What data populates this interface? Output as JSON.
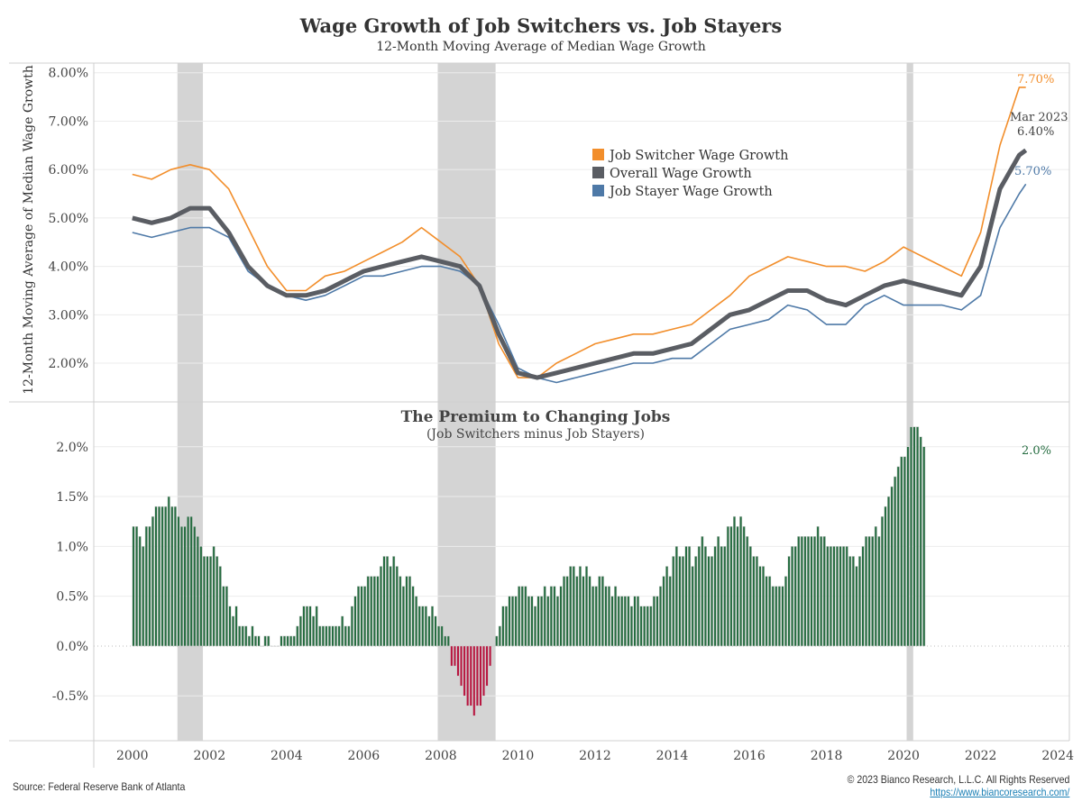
{
  "header": {
    "title": "Wage Growth of Job Switchers vs. Job Stayers",
    "subtitle": "12-Month Moving Average of Median Wage Growth"
  },
  "footer": {
    "source": "Source: Federal Reserve Bank of Atlanta",
    "copyright": "© 2023 Bianco Research, L.L.C. All Rights Reserved",
    "url": "https://www.biancoresearch.com/"
  },
  "colors": {
    "switcher": "#f28e2b",
    "overall": "#5a5d63",
    "stayer": "#4e79a7",
    "positive_bar": "#256c40",
    "negative_bar": "#b8153f",
    "recession": "#d4d4d4"
  },
  "chart_data": [
    {
      "type": "line",
      "title": "Wage Growth of Job Switchers vs. Job Stayers",
      "subtitle": "12-Month Moving Average of Median Wage Growth",
      "ylabel": "12-Month Moving Average of Median Wage Growth",
      "xlabel": "",
      "ylim": [
        1.2,
        8.2
      ],
      "xlim": [
        1999.0,
        2024.3
      ],
      "yticks": [
        "2.00%",
        "3.00%",
        "4.00%",
        "5.00%",
        "6.00%",
        "7.00%",
        "8.00%"
      ],
      "ytick_values": [
        2,
        3,
        4,
        5,
        6,
        7,
        8
      ],
      "grid": true,
      "legend_position": "top-center",
      "recessions": [
        [
          2001.17,
          2001.83
        ],
        [
          2007.92,
          2009.42
        ],
        [
          2020.08,
          2020.25
        ]
      ],
      "x": [
        2000.0,
        2000.5,
        2001.0,
        2001.5,
        2002.0,
        2002.5,
        2003.0,
        2003.5,
        2004.0,
        2004.5,
        2005.0,
        2005.5,
        2006.0,
        2006.5,
        2007.0,
        2007.5,
        2008.0,
        2008.5,
        2009.0,
        2009.5,
        2010.0,
        2010.5,
        2011.0,
        2011.5,
        2012.0,
        2012.5,
        2013.0,
        2013.5,
        2014.0,
        2014.5,
        2015.0,
        2015.5,
        2016.0,
        2016.5,
        2017.0,
        2017.5,
        2018.0,
        2018.5,
        2019.0,
        2019.5,
        2020.0,
        2020.5,
        2021.0,
        2021.5,
        2022.0,
        2022.5,
        2023.0,
        2023.17
      ],
      "series": [
        {
          "name": "Job Switcher Wage Growth",
          "end_label": "7.70%",
          "values": [
            5.9,
            5.8,
            6.0,
            6.1,
            6.0,
            5.6,
            4.8,
            4.0,
            3.5,
            3.5,
            3.8,
            3.9,
            4.1,
            4.3,
            4.5,
            4.8,
            4.5,
            4.2,
            3.6,
            2.4,
            1.7,
            1.7,
            2.0,
            2.2,
            2.4,
            2.5,
            2.6,
            2.6,
            2.7,
            2.8,
            3.1,
            3.4,
            3.8,
            4.0,
            4.2,
            4.1,
            4.0,
            4.0,
            3.9,
            4.1,
            4.4,
            4.2,
            4.0,
            3.8,
            4.7,
            6.5,
            7.7,
            7.7
          ]
        },
        {
          "name": "Overall Wage Growth",
          "end_label": "Mar 2023\n6.40%",
          "values": [
            5.0,
            4.9,
            5.0,
            5.2,
            5.2,
            4.7,
            4.0,
            3.6,
            3.4,
            3.4,
            3.5,
            3.7,
            3.9,
            4.0,
            4.1,
            4.2,
            4.1,
            4.0,
            3.6,
            2.6,
            1.8,
            1.7,
            1.8,
            1.9,
            2.0,
            2.1,
            2.2,
            2.2,
            2.3,
            2.4,
            2.7,
            3.0,
            3.1,
            3.3,
            3.5,
            3.5,
            3.3,
            3.2,
            3.4,
            3.6,
            3.7,
            3.6,
            3.5,
            3.4,
            4.0,
            5.6,
            6.3,
            6.4
          ]
        },
        {
          "name": "Job Stayer Wage Growth",
          "end_label": "5.70%",
          "values": [
            4.7,
            4.6,
            4.7,
            4.8,
            4.8,
            4.6,
            3.9,
            3.6,
            3.4,
            3.3,
            3.4,
            3.6,
            3.8,
            3.8,
            3.9,
            4.0,
            4.0,
            3.9,
            3.6,
            2.8,
            1.9,
            1.7,
            1.6,
            1.7,
            1.8,
            1.9,
            2.0,
            2.0,
            2.1,
            2.1,
            2.4,
            2.7,
            2.8,
            2.9,
            3.2,
            3.1,
            2.8,
            2.8,
            3.2,
            3.4,
            3.2,
            3.2,
            3.2,
            3.1,
            3.4,
            4.8,
            5.5,
            5.7
          ]
        }
      ]
    },
    {
      "type": "bar",
      "title": "The Premium to Changing Jobs",
      "subtitle": "(Job Switchers minus Job Stayers)",
      "xlabel": "",
      "ylabel": "",
      "ylim": [
        -0.95,
        2.45
      ],
      "yticks": [
        "-0.5%",
        "0.0%",
        "0.5%",
        "1.0%",
        "1.5%",
        "2.0%"
      ],
      "ytick_values": [
        -0.5,
        0.0,
        0.5,
        1.0,
        1.5,
        2.0
      ],
      "xticks": [
        "2000",
        "2002",
        "2004",
        "2006",
        "2008",
        "2010",
        "2012",
        "2014",
        "2016",
        "2018",
        "2020",
        "2022",
        "2024"
      ],
      "end_label": "2.0%",
      "start": 2000.0,
      "step_years": 0.08333,
      "values": [
        1.2,
        1.2,
        1.1,
        1.0,
        1.2,
        1.2,
        1.3,
        1.4,
        1.4,
        1.4,
        1.4,
        1.5,
        1.4,
        1.4,
        1.3,
        1.2,
        1.2,
        1.3,
        1.3,
        1.2,
        1.1,
        1.0,
        0.9,
        0.9,
        0.9,
        1.0,
        0.9,
        0.8,
        0.6,
        0.6,
        0.4,
        0.3,
        0.4,
        0.2,
        0.2,
        0.2,
        0.1,
        0.2,
        0.1,
        0.1,
        0.0,
        0.1,
        0.1,
        0.0,
        0.0,
        0.0,
        0.1,
        0.1,
        0.1,
        0.1,
        0.1,
        0.2,
        0.3,
        0.4,
        0.4,
        0.4,
        0.3,
        0.4,
        0.2,
        0.2,
        0.2,
        0.2,
        0.2,
        0.2,
        0.2,
        0.3,
        0.2,
        0.2,
        0.4,
        0.5,
        0.6,
        0.6,
        0.6,
        0.7,
        0.7,
        0.7,
        0.7,
        0.8,
        0.9,
        0.9,
        0.8,
        0.9,
        0.8,
        0.7,
        0.6,
        0.7,
        0.7,
        0.6,
        0.5,
        0.4,
        0.4,
        0.4,
        0.3,
        0.4,
        0.3,
        0.2,
        0.2,
        0.1,
        0.1,
        -0.2,
        -0.2,
        -0.3,
        -0.4,
        -0.5,
        -0.6,
        -0.6,
        -0.7,
        -0.6,
        -0.6,
        -0.5,
        -0.4,
        -0.2,
        0.0,
        0.1,
        0.2,
        0.4,
        0.4,
        0.5,
        0.5,
        0.5,
        0.6,
        0.6,
        0.6,
        0.5,
        0.5,
        0.4,
        0.5,
        0.5,
        0.6,
        0.5,
        0.6,
        0.6,
        0.5,
        0.6,
        0.7,
        0.7,
        0.8,
        0.8,
        0.7,
        0.8,
        0.7,
        0.8,
        0.7,
        0.6,
        0.6,
        0.7,
        0.7,
        0.6,
        0.6,
        0.5,
        0.6,
        0.5,
        0.5,
        0.5,
        0.5,
        0.4,
        0.5,
        0.5,
        0.4,
        0.4,
        0.4,
        0.4,
        0.5,
        0.5,
        0.6,
        0.7,
        0.8,
        0.7,
        0.9,
        1.0,
        0.9,
        0.9,
        1.0,
        1.0,
        0.8,
        0.9,
        1.0,
        1.1,
        1.0,
        0.9,
        0.9,
        1.0,
        1.1,
        1.0,
        1.0,
        1.2,
        1.2,
        1.3,
        1.2,
        1.3,
        1.2,
        1.1,
        1.0,
        0.9,
        0.9,
        0.8,
        0.8,
        0.7,
        0.7,
        0.6,
        0.6,
        0.6,
        0.6,
        0.7,
        0.9,
        1.0,
        1.0,
        1.1,
        1.1,
        1.1,
        1.1,
        1.1,
        1.1,
        1.2,
        1.1,
        1.1,
        1.0,
        1.0,
        1.0,
        1.0,
        1.0,
        1.0,
        1.0,
        0.9,
        0.9,
        0.8,
        0.9,
        1.0,
        1.1,
        1.1,
        1.1,
        1.2,
        1.1,
        1.3,
        1.4,
        1.5,
        1.6,
        1.7,
        1.8,
        1.9,
        1.9,
        2.0,
        2.2,
        2.2,
        2.2,
        2.1,
        2.0
      ]
    }
  ]
}
